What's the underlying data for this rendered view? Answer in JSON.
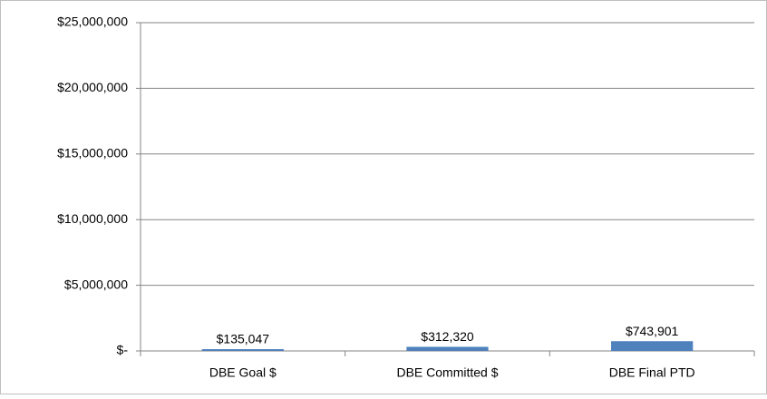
{
  "chart_data": {
    "type": "bar",
    "categories": [
      "DBE Goal $",
      "DBE Committed $",
      "DBE Final PTD"
    ],
    "values": [
      135047,
      312320,
      743901
    ],
    "value_labels": [
      "$135,047",
      "$312,320",
      "$743,901"
    ],
    "color": "#4f81bd",
    "ylim": [
      0,
      25000000
    ],
    "yticks": [
      {
        "value": 0,
        "label": "$-"
      },
      {
        "value": 5000000,
        "label": "$5,000,000"
      },
      {
        "value": 10000000,
        "label": "$10,000,000"
      },
      {
        "value": 15000000,
        "label": "$15,000,000"
      },
      {
        "value": 20000000,
        "label": "$20,000,000"
      },
      {
        "value": 25000000,
        "label": "$25,000,000"
      }
    ],
    "grid": true
  }
}
